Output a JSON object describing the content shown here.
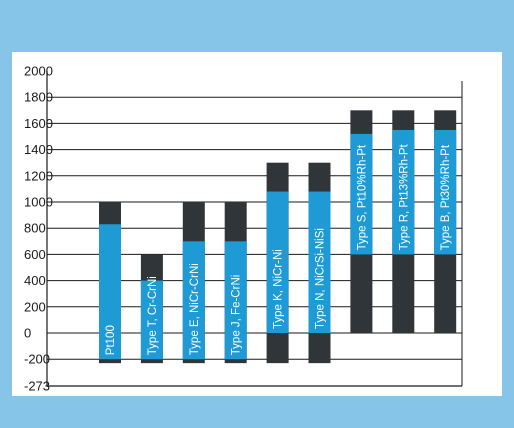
{
  "chart_data": {
    "type": "bar",
    "title": "",
    "xlabel": "",
    "ylabel": "",
    "yticks": [
      2000,
      1800,
      1600,
      1400,
      1200,
      1000,
      800,
      600,
      400,
      200,
      0,
      -200,
      -273
    ],
    "ylim": [
      -273,
      2000
    ],
    "grid": true,
    "colors": {
      "background": "#87c5e8",
      "panel": "#ffffff",
      "range_max": "#2f3538",
      "range_continuous": "#1e9bd4",
      "grid": "#1a1a1a"
    },
    "series": [
      {
        "name": "Pt100",
        "dark_low": -230,
        "dark_high": 1000,
        "blue_low": -200,
        "blue_high": 830
      },
      {
        "name": "Type T, Cr-CrNi",
        "dark_low": -230,
        "dark_high": 600,
        "blue_low": -200,
        "blue_high": 400
      },
      {
        "name": "Type E, NiCr-CrNi",
        "dark_low": -230,
        "dark_high": 1000,
        "blue_low": -200,
        "blue_high": 700
      },
      {
        "name": "Type J, Fe-CrNi",
        "dark_low": -230,
        "dark_high": 1000,
        "blue_low": -200,
        "blue_high": 700
      },
      {
        "name": "Type K, NiCr-Ni",
        "dark_low": -230,
        "dark_high": 1300,
        "blue_low": 0,
        "blue_high": 1080
      },
      {
        "name": "Type N, NiCrSi-NiSi",
        "dark_low": -230,
        "dark_high": 1300,
        "blue_low": 0,
        "blue_high": 1080
      },
      {
        "name": "Type S, Pt10%Rh-Pt",
        "dark_low": 0,
        "dark_high": 1700,
        "blue_low": 600,
        "blue_high": 1520
      },
      {
        "name": "Type R, Pt13%Rh-Pt",
        "dark_low": 0,
        "dark_high": 1700,
        "blue_low": 600,
        "blue_high": 1550
      },
      {
        "name": "Type B, Pt30%Rh-Pt",
        "dark_low": 0,
        "dark_high": 1700,
        "blue_low": 600,
        "blue_high": 1550
      }
    ]
  }
}
